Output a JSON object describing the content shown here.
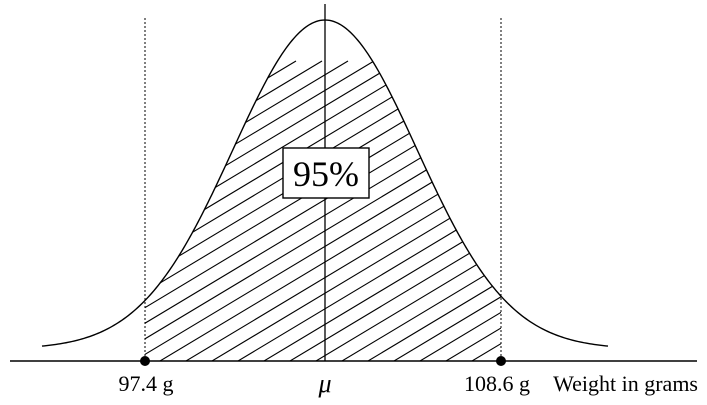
{
  "diagram": {
    "center_percent_label": "95%",
    "lower_bound_label": "97.4 g",
    "upper_bound_label": "108.6 g",
    "mean_label": "μ",
    "axis_label": "Weight in grams",
    "lower_bound_value": 97.4,
    "upper_bound_value": 108.6,
    "shaded_fraction": 0.95
  }
}
